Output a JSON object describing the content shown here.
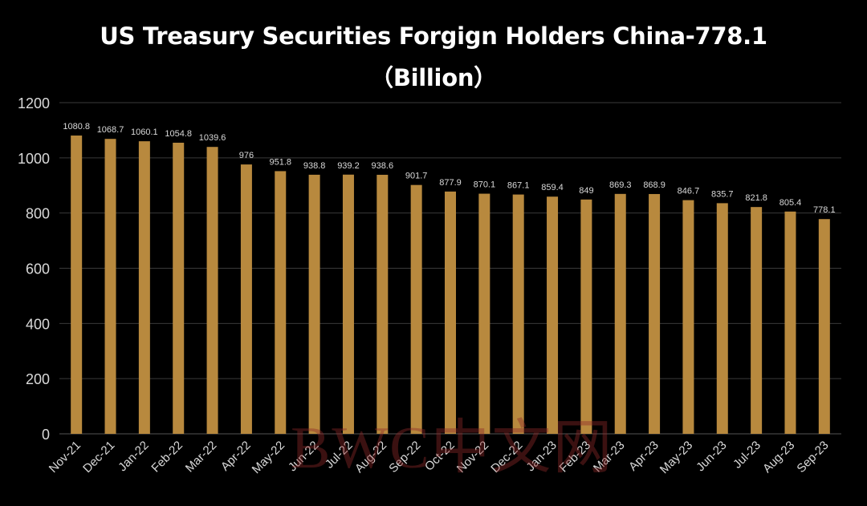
{
  "title_line_1": "US Treasury Securities Forgign Holders China-778.1",
  "title_line_2": "（Billion）",
  "watermark": "BWC中文网",
  "colors": {
    "background": "#000000",
    "bar": "#B8893E",
    "grid": "#3a3a3a",
    "text": "#d9d9d9"
  },
  "chart_data": {
    "type": "bar",
    "title": "US Treasury Securities Forgign Holders China-778.1 （Billion）",
    "xlabel": "",
    "ylabel": "",
    "ylim": [
      0,
      1200
    ],
    "yticks": [
      0,
      200,
      400,
      600,
      800,
      1000,
      1200
    ],
    "grid": true,
    "categories": [
      "Nov-21",
      "Dec-21",
      "Jan-22",
      "Feb-22",
      "Mar-22",
      "Apr-22",
      "May-22",
      "Jun-22",
      "Jul-22",
      "Aug-22",
      "Sep-22",
      "Oct-22",
      "Nov-22",
      "Dec-22",
      "Jan-23",
      "Feb-23",
      "Mar-23",
      "Apr-23",
      "May-23",
      "Jun-23",
      "Jul-23",
      "Aug-23",
      "Sep-23"
    ],
    "values": [
      1080.8,
      1068.7,
      1060.1,
      1054.8,
      1039.6,
      976,
      951.8,
      938.8,
      939.2,
      938.6,
      901.7,
      877.9,
      870.1,
      867.1,
      859.4,
      849,
      869.3,
      868.9,
      846.7,
      835.7,
      821.8,
      805.4,
      778.1
    ],
    "labels": [
      "1080.8",
      "1068.7",
      "1060.1",
      "1054.8",
      "1039.6",
      "976",
      "951.8",
      "938.8",
      "939.2",
      "938.6",
      "901.7",
      "877.9",
      "870.1",
      "867.1",
      "859.4",
      "849",
      "869.3",
      "868.9",
      "846.7",
      "835.7",
      "821.8",
      "805.4",
      "778.1"
    ]
  }
}
